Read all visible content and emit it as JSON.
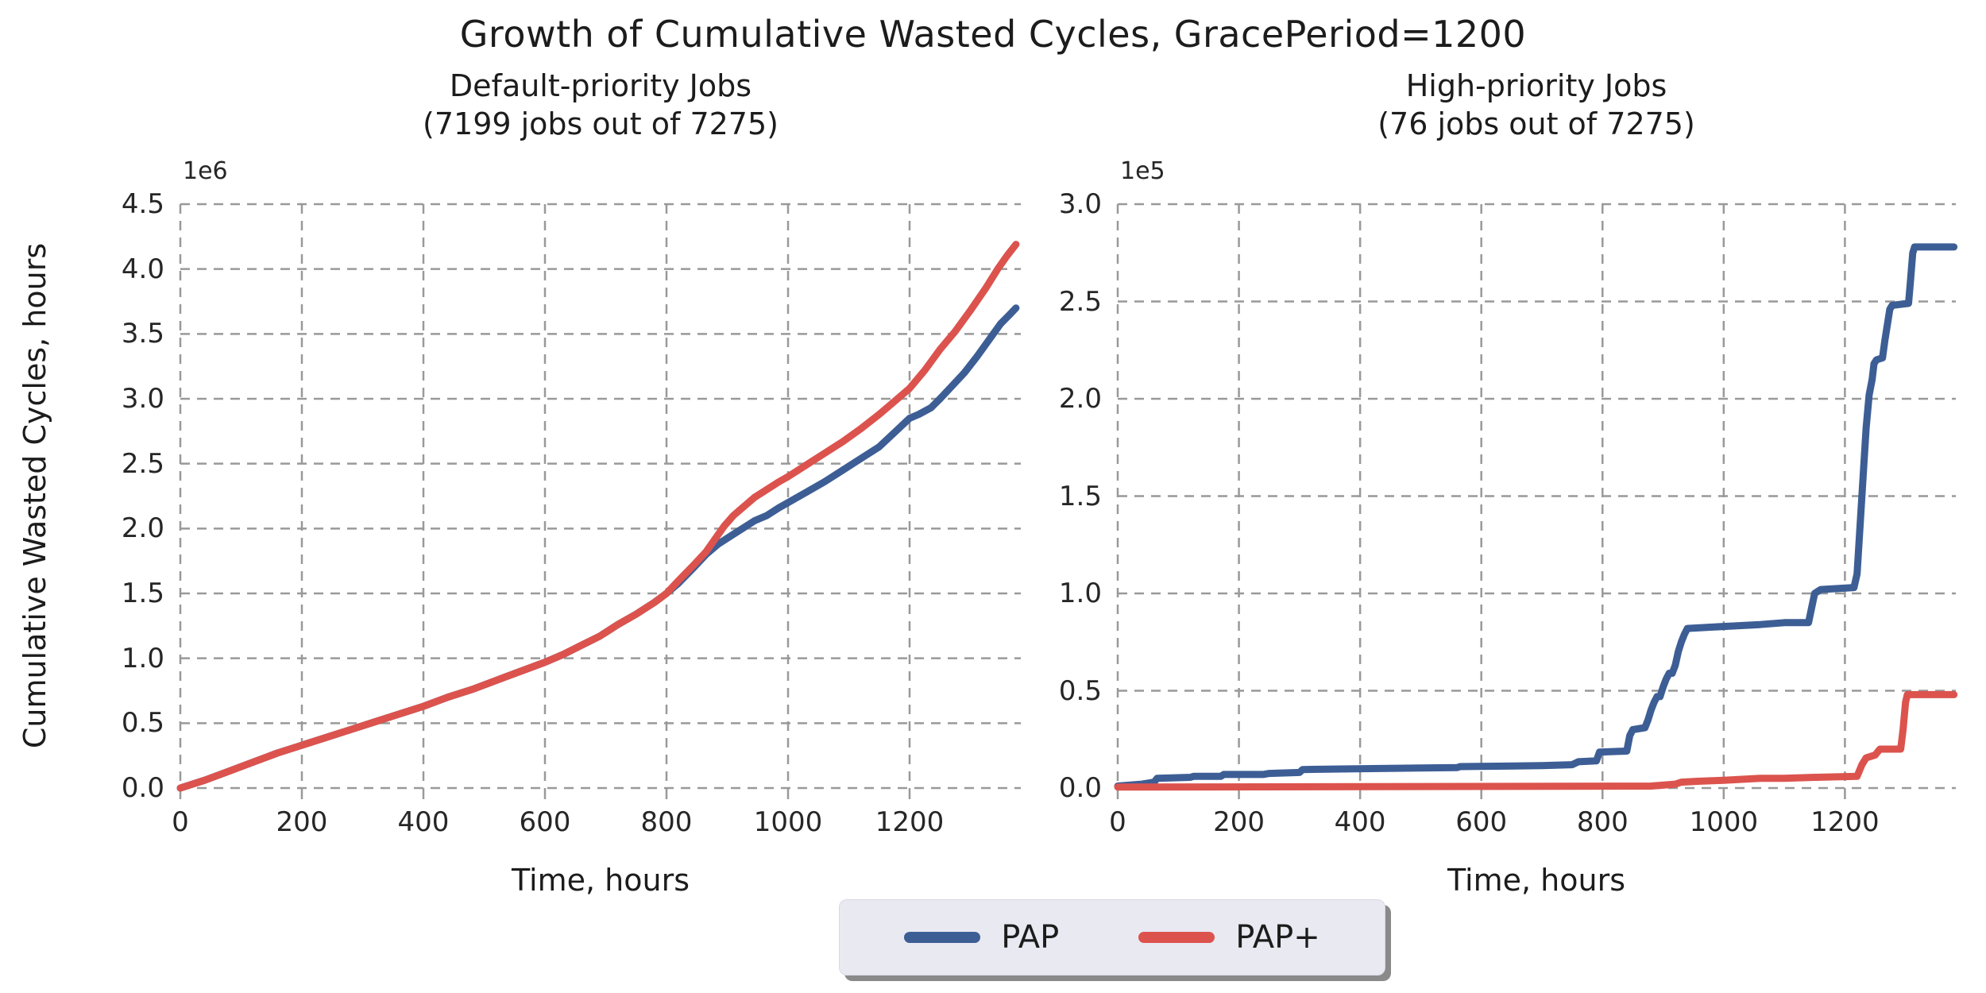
{
  "figure": {
    "title": "Growth of Cumulative Wasted Cycles, GracePeriod=1200",
    "ylabel": "Cumulative Wasted Cycles, hours",
    "background": "#ffffff",
    "text_color": "#262626",
    "grid_color": "#999999"
  },
  "legend": {
    "items": [
      {
        "label": "PAP",
        "color": "#3d5e95"
      },
      {
        "label": "PAP+",
        "color": "#dc534e"
      }
    ]
  },
  "chart_data": [
    {
      "type": "line",
      "title": "Default-priority Jobs",
      "subtitle": "(7199 jobs out of 7275)",
      "xlabel": "Time, hours",
      "ylabel": "Cumulative Wasted Cycles, hours",
      "offset_text": "1e6",
      "xlim": [
        0,
        1383
      ],
      "ylim": [
        0,
        4.5
      ],
      "grid": "dashed",
      "legend_position": "bottom-center-shared",
      "xticks": [
        0,
        200,
        400,
        600,
        800,
        1000,
        1200
      ],
      "xtick_labels": [
        "0",
        "200",
        "400",
        "600",
        "800",
        "1000",
        "1200"
      ],
      "yticks": [
        0,
        0.5,
        1.0,
        1.5,
        2.0,
        2.5,
        3.0,
        3.5,
        4.0,
        4.5
      ],
      "ytick_labels": [
        "0.0",
        "0.5",
        "1.0",
        "1.5",
        "2.0",
        "2.5",
        "3.0",
        "3.5",
        "4.0",
        "4.5"
      ],
      "series": [
        {
          "name": "PAP",
          "color": "#3d5e95",
          "points": [
            [
              0,
              0
            ],
            [
              40,
              0.06
            ],
            [
              80,
              0.13
            ],
            [
              120,
              0.2
            ],
            [
              160,
              0.27
            ],
            [
              200,
              0.33
            ],
            [
              240,
              0.39
            ],
            [
              280,
              0.45
            ],
            [
              320,
              0.51
            ],
            [
              360,
              0.57
            ],
            [
              400,
              0.63
            ],
            [
              440,
              0.7
            ],
            [
              480,
              0.76
            ],
            [
              520,
              0.83
            ],
            [
              560,
              0.9
            ],
            [
              600,
              0.97
            ],
            [
              630,
              1.03
            ],
            [
              660,
              1.1
            ],
            [
              690,
              1.17
            ],
            [
              720,
              1.26
            ],
            [
              750,
              1.34
            ],
            [
              780,
              1.43
            ],
            [
              800,
              1.5
            ],
            [
              820,
              1.58
            ],
            [
              845,
              1.7
            ],
            [
              865,
              1.8
            ],
            [
              885,
              1.88
            ],
            [
              905,
              1.94
            ],
            [
              925,
              2.0
            ],
            [
              945,
              2.06
            ],
            [
              965,
              2.1
            ],
            [
              985,
              2.16
            ],
            [
              1000,
              2.2
            ],
            [
              1030,
              2.28
            ],
            [
              1060,
              2.36
            ],
            [
              1090,
              2.45
            ],
            [
              1120,
              2.54
            ],
            [
              1150,
              2.63
            ],
            [
              1175,
              2.74
            ],
            [
              1200,
              2.85
            ],
            [
              1215,
              2.88
            ],
            [
              1235,
              2.93
            ],
            [
              1250,
              3.0
            ],
            [
              1270,
              3.1
            ],
            [
              1290,
              3.2
            ],
            [
              1310,
              3.32
            ],
            [
              1330,
              3.45
            ],
            [
              1350,
              3.58
            ],
            [
              1365,
              3.65
            ],
            [
              1375,
              3.7
            ]
          ]
        },
        {
          "name": "PAP+",
          "color": "#dc534e",
          "points": [
            [
              0,
              0
            ],
            [
              40,
              0.06
            ],
            [
              80,
              0.13
            ],
            [
              120,
              0.2
            ],
            [
              160,
              0.27
            ],
            [
              200,
              0.33
            ],
            [
              240,
              0.39
            ],
            [
              280,
              0.45
            ],
            [
              320,
              0.51
            ],
            [
              360,
              0.57
            ],
            [
              400,
              0.63
            ],
            [
              440,
              0.7
            ],
            [
              480,
              0.76
            ],
            [
              520,
              0.83
            ],
            [
              560,
              0.9
            ],
            [
              600,
              0.97
            ],
            [
              630,
              1.03
            ],
            [
              660,
              1.1
            ],
            [
              690,
              1.17
            ],
            [
              720,
              1.26
            ],
            [
              750,
              1.34
            ],
            [
              780,
              1.43
            ],
            [
              800,
              1.5
            ],
            [
              820,
              1.6
            ],
            [
              845,
              1.72
            ],
            [
              865,
              1.82
            ],
            [
              880,
              1.92
            ],
            [
              895,
              2.02
            ],
            [
              910,
              2.1
            ],
            [
              925,
              2.16
            ],
            [
              945,
              2.24
            ],
            [
              965,
              2.3
            ],
            [
              985,
              2.36
            ],
            [
              1000,
              2.4
            ],
            [
              1030,
              2.49
            ],
            [
              1060,
              2.58
            ],
            [
              1090,
              2.67
            ],
            [
              1120,
              2.77
            ],
            [
              1150,
              2.88
            ],
            [
              1175,
              2.98
            ],
            [
              1200,
              3.08
            ],
            [
              1225,
              3.22
            ],
            [
              1250,
              3.38
            ],
            [
              1275,
              3.52
            ],
            [
              1300,
              3.68
            ],
            [
              1325,
              3.85
            ],
            [
              1345,
              4.0
            ],
            [
              1360,
              4.1
            ],
            [
              1375,
              4.19
            ]
          ]
        }
      ]
    },
    {
      "type": "line",
      "title": "High-priority Jobs",
      "subtitle": "(76 jobs out of 7275)",
      "xlabel": "Time, hours",
      "ylabel": "Cumulative Wasted Cycles, hours",
      "offset_text": "1e5",
      "xlim": [
        0,
        1383
      ],
      "ylim": [
        0,
        3.0
      ],
      "grid": "dashed",
      "legend_position": "bottom-center-shared",
      "xticks": [
        0,
        200,
        400,
        600,
        800,
        1000,
        1200
      ],
      "xtick_labels": [
        "0",
        "200",
        "400",
        "600",
        "800",
        "1000",
        "1200"
      ],
      "yticks": [
        0,
        0.5,
        1.0,
        1.5,
        2.0,
        2.5,
        3.0
      ],
      "ytick_labels": [
        "0.0",
        "0.5",
        "1.0",
        "1.5",
        "2.0",
        "2.5",
        "3.0"
      ],
      "series": [
        {
          "name": "PAP",
          "color": "#3d5e95",
          "points": [
            [
              0,
              0.01
            ],
            [
              40,
              0.02
            ],
            [
              60,
              0.03
            ],
            [
              65,
              0.05
            ],
            [
              120,
              0.055
            ],
            [
              125,
              0.06
            ],
            [
              170,
              0.06
            ],
            [
              175,
              0.07
            ],
            [
              240,
              0.07
            ],
            [
              250,
              0.075
            ],
            [
              300,
              0.08
            ],
            [
              305,
              0.095
            ],
            [
              420,
              0.1
            ],
            [
              560,
              0.105
            ],
            [
              565,
              0.11
            ],
            [
              700,
              0.115
            ],
            [
              750,
              0.12
            ],
            [
              760,
              0.135
            ],
            [
              790,
              0.14
            ],
            [
              795,
              0.185
            ],
            [
              840,
              0.19
            ],
            [
              845,
              0.27
            ],
            [
              850,
              0.3
            ],
            [
              870,
              0.31
            ],
            [
              875,
              0.35
            ],
            [
              880,
              0.4
            ],
            [
              885,
              0.44
            ],
            [
              890,
              0.47
            ],
            [
              895,
              0.47
            ],
            [
              900,
              0.52
            ],
            [
              905,
              0.56
            ],
            [
              910,
              0.59
            ],
            [
              915,
              0.59
            ],
            [
              920,
              0.63
            ],
            [
              925,
              0.7
            ],
            [
              930,
              0.75
            ],
            [
              935,
              0.79
            ],
            [
              940,
              0.82
            ],
            [
              1000,
              0.83
            ],
            [
              1060,
              0.84
            ],
            [
              1100,
              0.85
            ],
            [
              1140,
              0.85
            ],
            [
              1150,
              1.0
            ],
            [
              1160,
              1.02
            ],
            [
              1215,
              1.03
            ],
            [
              1220,
              1.1
            ],
            [
              1225,
              1.35
            ],
            [
              1230,
              1.6
            ],
            [
              1235,
              1.85
            ],
            [
              1240,
              2.02
            ],
            [
              1245,
              2.1
            ],
            [
              1248,
              2.18
            ],
            [
              1252,
              2.2
            ],
            [
              1262,
              2.21
            ],
            [
              1266,
              2.3
            ],
            [
              1270,
              2.38
            ],
            [
              1274,
              2.46
            ],
            [
              1278,
              2.48
            ],
            [
              1305,
              2.49
            ],
            [
              1308,
              2.6
            ],
            [
              1312,
              2.75
            ],
            [
              1315,
              2.78
            ],
            [
              1380,
              2.78
            ]
          ]
        },
        {
          "name": "PAP+",
          "color": "#dc534e",
          "points": [
            [
              0,
              0.005
            ],
            [
              880,
              0.01
            ],
            [
              920,
              0.02
            ],
            [
              930,
              0.03
            ],
            [
              960,
              0.035
            ],
            [
              1000,
              0.04
            ],
            [
              1060,
              0.05
            ],
            [
              1100,
              0.05
            ],
            [
              1150,
              0.055
            ],
            [
              1220,
              0.06
            ],
            [
              1228,
              0.12
            ],
            [
              1235,
              0.155
            ],
            [
              1240,
              0.16
            ],
            [
              1250,
              0.17
            ],
            [
              1255,
              0.19
            ],
            [
              1258,
              0.2
            ],
            [
              1292,
              0.2
            ],
            [
              1296,
              0.3
            ],
            [
              1300,
              0.44
            ],
            [
              1303,
              0.48
            ],
            [
              1380,
              0.48
            ]
          ]
        }
      ]
    }
  ]
}
